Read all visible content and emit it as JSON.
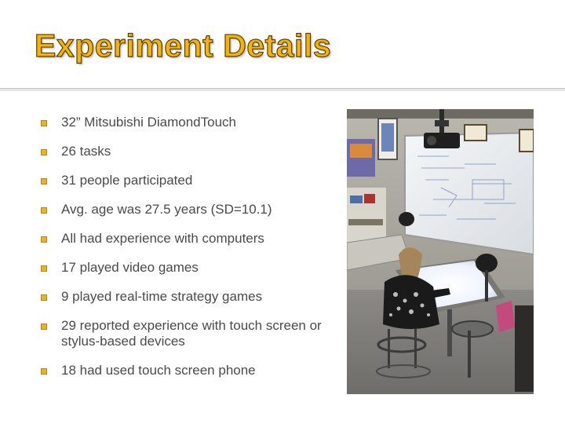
{
  "slide": {
    "title": "Experiment Details",
    "bullets": [
      "32” Mitsubishi DiamondTouch",
      "26 tasks",
      "31 people participated",
      "Avg. age was 27.5 years (SD=10.1)",
      "All had experience with computers",
      "17 played video games",
      "9 played real-time strategy games",
      "29 reported experience with touch screen or stylus-based devices",
      "18 had used touch screen phone"
    ]
  },
  "colors": {
    "title_fill": "#f2b40c",
    "bullet_marker": "#e8b32a",
    "body_text": "#4a4a4a"
  },
  "photo": {
    "subject": "participant-at-diamondtouch-table-photo"
  }
}
